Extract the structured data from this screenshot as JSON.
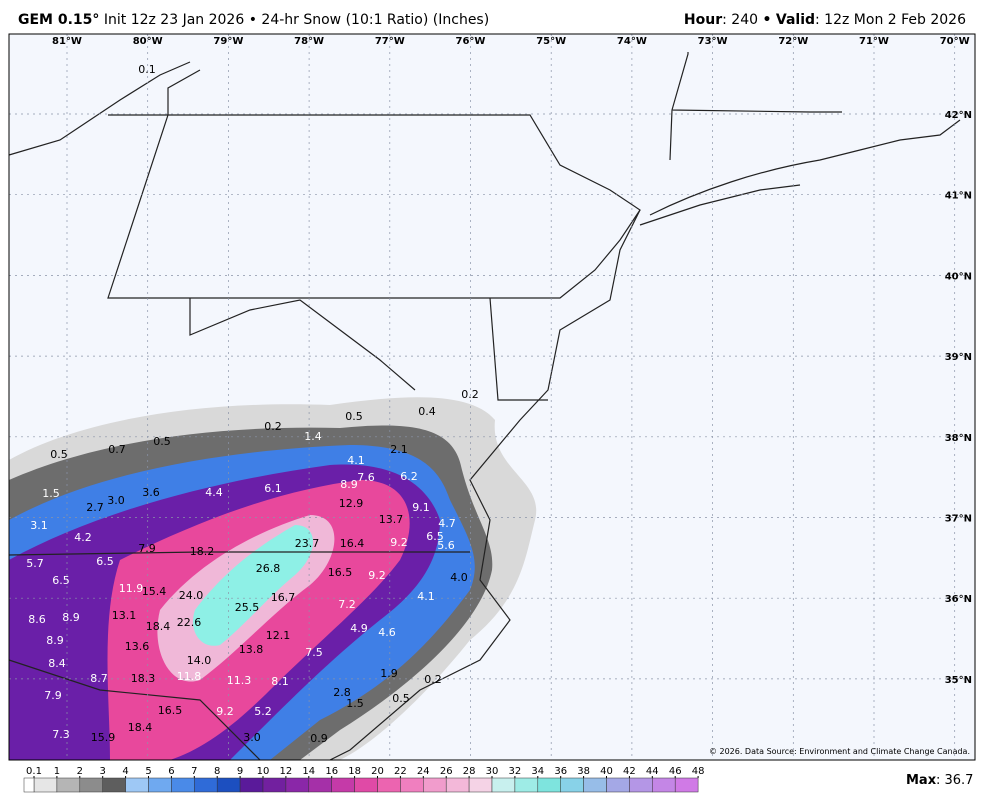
{
  "header": {
    "model": "GEM 0.15°",
    "init": "Init 12z 23 Jan 2026",
    "separator": "•",
    "product": "24-hr Snow (10:1 Ratio) (Inches)",
    "hour_label": "Hour",
    "hour": ": 240",
    "valid_label": "Valid",
    "valid": ": 12z Mon 2 Feb 2026"
  },
  "map": {
    "longitudes": [
      "81°W",
      "80°W",
      "79°W",
      "78°W",
      "77°W",
      "76°W",
      "75°W",
      "74°W",
      "73°W",
      "72°W",
      "71°W",
      "70°W"
    ],
    "latitudes": [
      "42°N",
      "41°N",
      "40°N",
      "39°N",
      "38°N",
      "37°N",
      "36°N",
      "35°N"
    ],
    "snow_labels": [
      "0.1",
      "0.2",
      "0.4",
      "0.5",
      "0.2",
      "1.4",
      "0.7",
      "0.5",
      "0.5",
      "2.1",
      "4.1",
      "7.6",
      "6.2",
      "8.9",
      "1.5",
      "3.6",
      "4.4",
      "6.1",
      "3.0",
      "2.7",
      "12.9",
      "9.1",
      "13.7",
      "4.7",
      "3.1",
      "4.2",
      "23.7",
      "16.4",
      "9.2",
      "6.5",
      "5.6",
      "7.9",
      "18.2",
      "5.7",
      "6.5",
      "26.8",
      "16.5",
      "9.2",
      "4.0",
      "6.5",
      "11.9",
      "15.4",
      "24.0",
      "16.7",
      "4.1",
      "25.5",
      "7.2",
      "8.6",
      "8.9",
      "13.1",
      "22.6",
      "18.4",
      "4.9",
      "4.6",
      "12.1",
      "8.9",
      "13.6",
      "13.8",
      "7.5",
      "8.4",
      "14.0",
      "1.9",
      "8.7",
      "18.3",
      "11.8",
      "11.3",
      "8.1",
      "0.2",
      "7.9",
      "2.8",
      "0.5",
      "1.5",
      "16.5",
      "9.2",
      "5.2",
      "18.4",
      "7.3",
      "3.0",
      "15.9",
      "0.9"
    ],
    "credit": "© 2026. Data Source: Environment and Climate Change Canada."
  },
  "legend": {
    "ticks": [
      0.1,
      1,
      2,
      3,
      4,
      5,
      6,
      7,
      8,
      9,
      10,
      12,
      14,
      16,
      18,
      20,
      22,
      24,
      26,
      28,
      30,
      32,
      34,
      36,
      38,
      40,
      42,
      44,
      46,
      48
    ],
    "max_label": "Max",
    "max": ": 36.7"
  }
}
